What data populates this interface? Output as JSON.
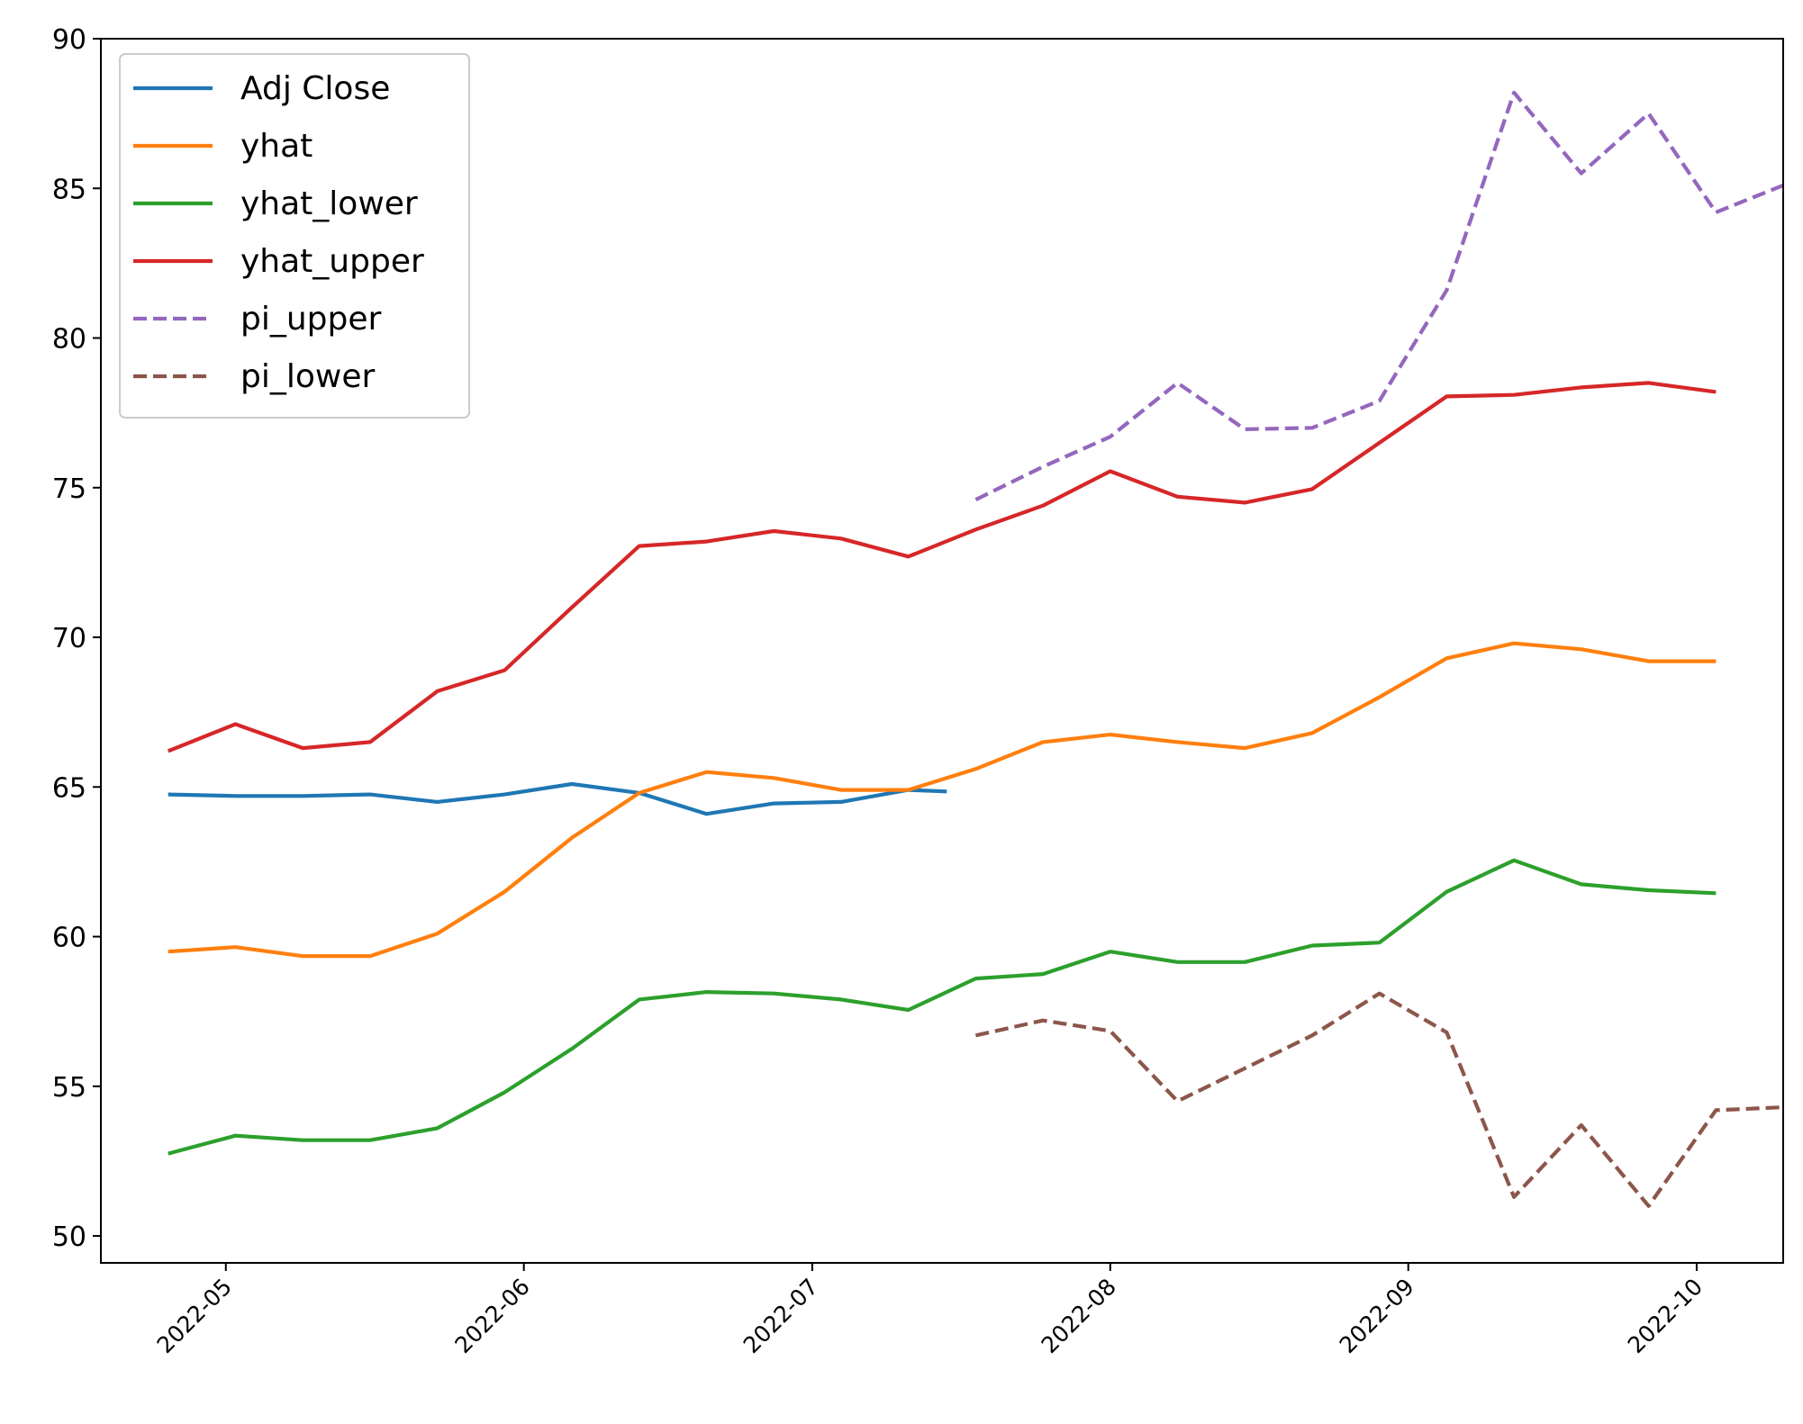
{
  "chart_data": {
    "type": "line",
    "title": "",
    "xlabel": "",
    "ylabel": "",
    "ylim": [
      49.1,
      90
    ],
    "x_range": [
      "2022-04-18",
      "2022-10-10"
    ],
    "grid": false,
    "legend_position": "top-left",
    "yticks": [
      50,
      55,
      60,
      65,
      70,
      75,
      80,
      85,
      90
    ],
    "xticks": [
      {
        "date": "2022-05-01",
        "label": "2022-05"
      },
      {
        "date": "2022-06-01",
        "label": "2022-06"
      },
      {
        "date": "2022-07-01",
        "label": "2022-07"
      },
      {
        "date": "2022-08-01",
        "label": "2022-08"
      },
      {
        "date": "2022-09-01",
        "label": "2022-09"
      },
      {
        "date": "2022-10-01",
        "label": "2022-10"
      }
    ],
    "series": [
      {
        "name": "Adj Close",
        "color": "#1f77b4",
        "dashed": false,
        "x": [
          "2022-04-25",
          "2022-05-02",
          "2022-05-09",
          "2022-05-16",
          "2022-05-23",
          "2022-05-30",
          "2022-06-06",
          "2022-06-13",
          "2022-06-20",
          "2022-06-27",
          "2022-07-04",
          "2022-07-11",
          "2022-07-15"
        ],
        "y": [
          64.75,
          64.7,
          64.7,
          64.75,
          64.5,
          64.75,
          65.1,
          64.8,
          64.1,
          64.45,
          64.5,
          64.9,
          64.85
        ]
      },
      {
        "name": "yhat",
        "color": "#ff7f0e",
        "dashed": false,
        "x": [
          "2022-04-25",
          "2022-05-02",
          "2022-05-09",
          "2022-05-16",
          "2022-05-23",
          "2022-05-30",
          "2022-06-06",
          "2022-06-13",
          "2022-06-20",
          "2022-06-27",
          "2022-07-04",
          "2022-07-11",
          "2022-07-18",
          "2022-07-25",
          "2022-08-01",
          "2022-08-08",
          "2022-08-15",
          "2022-08-22",
          "2022-08-29",
          "2022-09-05",
          "2022-09-12",
          "2022-09-19",
          "2022-09-26",
          "2022-10-03"
        ],
        "y": [
          59.5,
          59.65,
          59.35,
          59.35,
          60.1,
          61.5,
          63.3,
          64.8,
          65.5,
          65.3,
          64.9,
          64.9,
          65.6,
          66.5,
          66.75,
          66.5,
          66.3,
          66.8,
          68.0,
          69.3,
          69.8,
          69.6,
          69.2,
          69.2
        ]
      },
      {
        "name": "yhat_lower",
        "color": "#2ca02c",
        "dashed": false,
        "x": [
          "2022-04-25",
          "2022-05-02",
          "2022-05-09",
          "2022-05-16",
          "2022-05-23",
          "2022-05-30",
          "2022-06-06",
          "2022-06-13",
          "2022-06-20",
          "2022-06-27",
          "2022-07-04",
          "2022-07-11",
          "2022-07-18",
          "2022-07-25",
          "2022-08-01",
          "2022-08-08",
          "2022-08-15",
          "2022-08-22",
          "2022-08-29",
          "2022-09-05",
          "2022-09-12",
          "2022-09-19",
          "2022-09-26",
          "2022-10-03"
        ],
        "y": [
          52.75,
          53.35,
          53.2,
          53.2,
          53.6,
          54.8,
          56.25,
          57.9,
          58.15,
          58.1,
          57.9,
          57.55,
          58.6,
          58.75,
          59.5,
          59.15,
          59.15,
          59.7,
          59.8,
          61.5,
          62.55,
          61.75,
          61.55,
          61.45
        ]
      },
      {
        "name": "yhat_upper",
        "color": "#d62728",
        "dashed": false,
        "x": [
          "2022-04-25",
          "2022-05-02",
          "2022-05-09",
          "2022-05-16",
          "2022-05-23",
          "2022-05-30",
          "2022-06-06",
          "2022-06-13",
          "2022-06-20",
          "2022-06-27",
          "2022-07-04",
          "2022-07-11",
          "2022-07-18",
          "2022-07-25",
          "2022-08-01",
          "2022-08-08",
          "2022-08-15",
          "2022-08-22",
          "2022-08-29",
          "2022-09-05",
          "2022-09-12",
          "2022-09-19",
          "2022-09-26",
          "2022-10-03"
        ],
        "y": [
          66.2,
          67.1,
          66.3,
          66.5,
          68.2,
          68.9,
          71.0,
          73.05,
          73.2,
          73.55,
          73.3,
          72.7,
          73.6,
          74.4,
          75.55,
          74.7,
          74.5,
          74.95,
          76.5,
          78.05,
          78.1,
          78.35,
          78.5,
          78.2
        ]
      },
      {
        "name": "pi_upper",
        "color": "#9467bd",
        "dashed": true,
        "x": [
          "2022-07-18",
          "2022-07-25",
          "2022-08-01",
          "2022-08-08",
          "2022-08-15",
          "2022-08-22",
          "2022-08-29",
          "2022-09-05",
          "2022-09-12",
          "2022-09-19",
          "2022-09-26",
          "2022-10-03",
          "2022-10-10"
        ],
        "y": [
          74.6,
          75.7,
          76.7,
          78.5,
          76.95,
          77.0,
          77.9,
          81.6,
          88.2,
          85.5,
          87.5,
          84.2,
          85.1
        ]
      },
      {
        "name": "pi_lower",
        "color": "#8c564b",
        "dashed": true,
        "x": [
          "2022-07-18",
          "2022-07-25",
          "2022-08-01",
          "2022-08-08",
          "2022-08-15",
          "2022-08-22",
          "2022-08-29",
          "2022-09-05",
          "2022-09-12",
          "2022-09-19",
          "2022-09-26",
          "2022-10-03",
          "2022-10-10"
        ],
        "y": [
          56.7,
          57.2,
          56.85,
          54.5,
          55.6,
          56.7,
          58.1,
          56.8,
          51.3,
          53.7,
          51.0,
          54.2,
          54.3
        ]
      }
    ]
  }
}
